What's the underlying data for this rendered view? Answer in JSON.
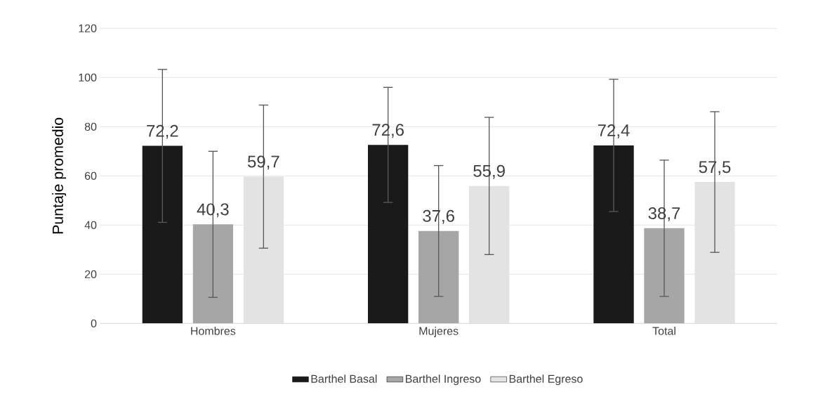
{
  "chart_data": {
    "type": "bar",
    "ylabel": "Puntaje promedio",
    "categories": [
      "Hombres",
      "Mujeres",
      "Total"
    ],
    "series": [
      {
        "name": "Barthel Basal",
        "color": "#1a1a1a",
        "values": [
          72.2,
          72.6,
          72.4
        ],
        "errors": [
          31.1,
          23.4,
          26.9
        ],
        "value_labels": [
          "72,2",
          "72,6",
          "72,4"
        ]
      },
      {
        "name": "Barthel Ingreso",
        "color": "#a6a6a6",
        "values": [
          40.3,
          37.6,
          38.7
        ],
        "errors": [
          29.7,
          26.6,
          27.7
        ],
        "value_labels": [
          "40,3",
          "37,6",
          "38,7"
        ]
      },
      {
        "name": "Barthel Egreso",
        "color": "#e3e3e3",
        "values": [
          59.7,
          55.9,
          57.5
        ],
        "errors": [
          29.1,
          27.9,
          28.6
        ],
        "value_labels": [
          "59,7",
          "55,9",
          "57,5"
        ]
      }
    ],
    "ylim": [
      0,
      120
    ],
    "yticks": [
      0,
      20,
      40,
      60,
      80,
      100,
      120
    ],
    "grid": "y",
    "legend": "bottom"
  }
}
